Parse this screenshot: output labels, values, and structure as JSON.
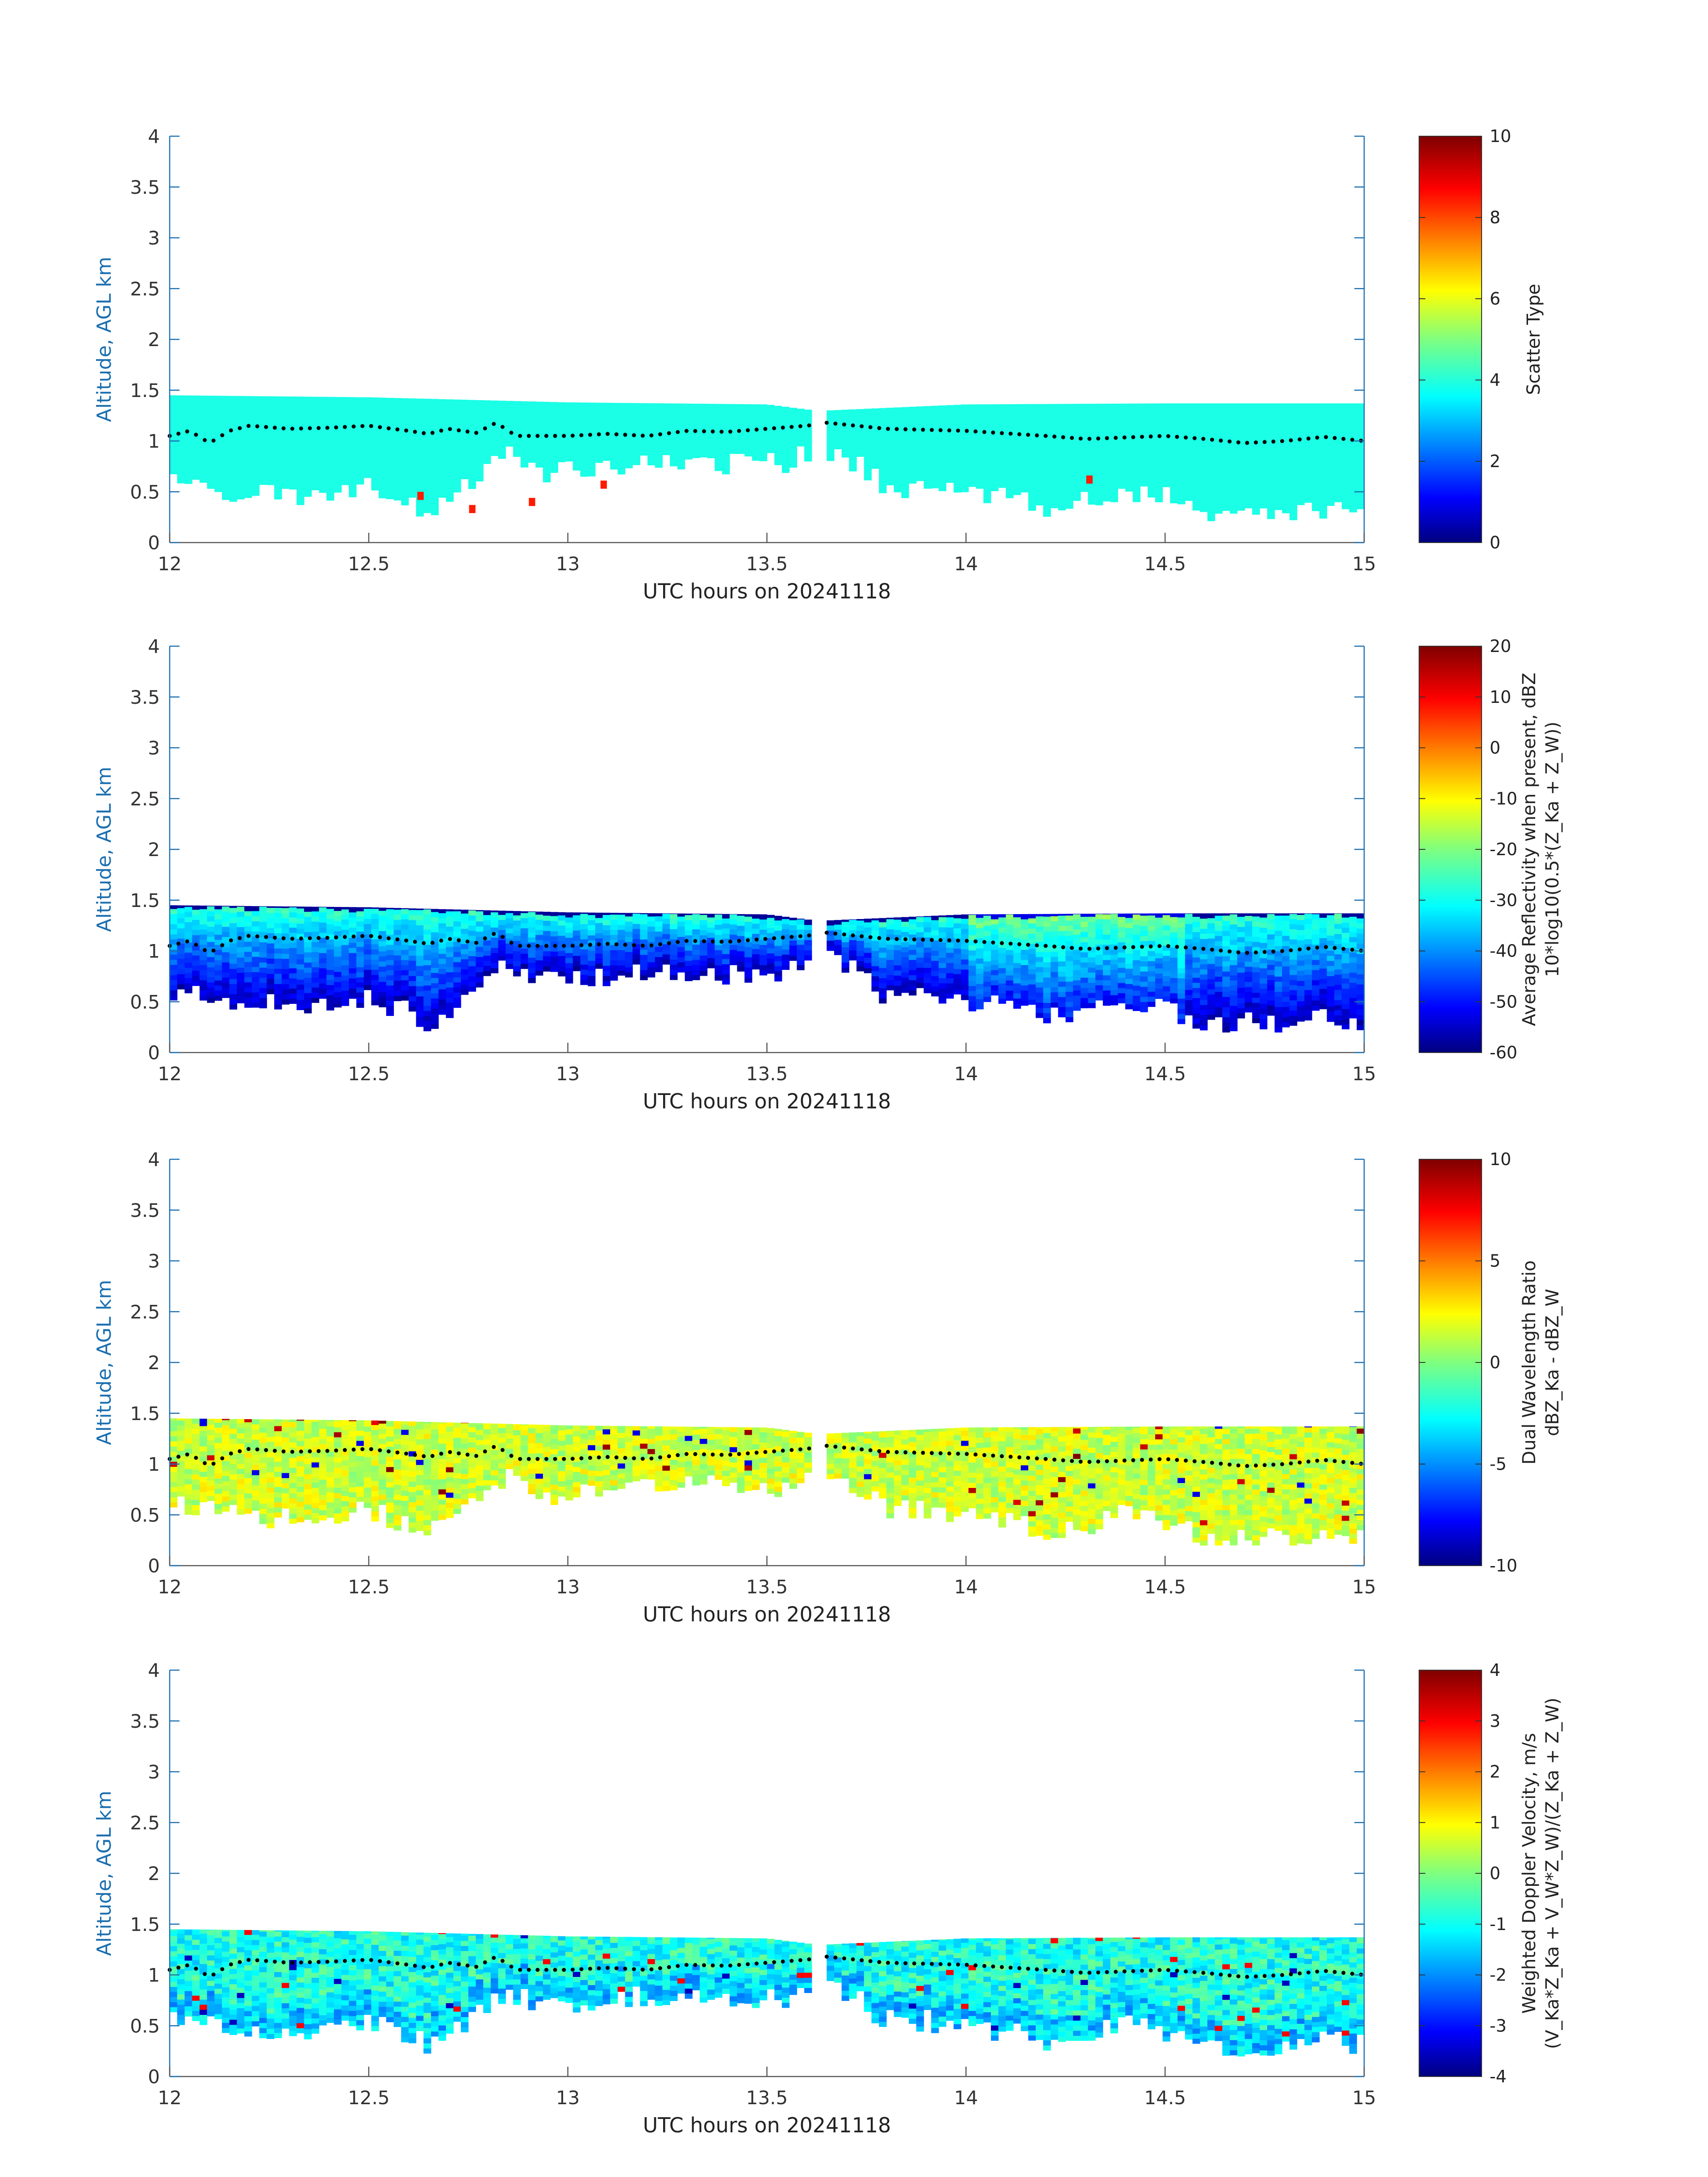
{
  "figure": {
    "x_range": [
      12,
      15
    ],
    "y_range": [
      0,
      4
    ],
    "x_ticks": [
      "12",
      "12.5",
      "13",
      "13.5",
      "14",
      "14.5",
      "15"
    ],
    "y_ticks": [
      "0",
      "0.5",
      "1",
      "1.5",
      "2",
      "2.5",
      "3",
      "3.5",
      "4"
    ],
    "colormap": "jet",
    "axis_color": "#1b6fb0"
  },
  "chart_data": [
    {
      "type": "heatmap",
      "xlabel": "UTC hours on 20241118",
      "ylabel": "Altitude, AGL km",
      "xlim": [
        12,
        15
      ],
      "ylim": [
        0,
        4
      ],
      "colorbar": {
        "label_lines": [
          "Scatter Type"
        ],
        "range": [
          0,
          10
        ],
        "ticks": [
          "10",
          "8",
          "6",
          "4",
          "2",
          "0"
        ]
      },
      "field": "scatter",
      "top_m": 1.35,
      "bottom_base_km": 0.65,
      "series": [
        {
          "values_description_ref": "layer"
        }
      ],
      "sparse_cells": [
        {
          "x": 12.63,
          "y": 0.46,
          "value": 8.5
        },
        {
          "x": 12.76,
          "y": 0.33,
          "value": 8.5
        },
        {
          "x": 12.91,
          "y": 0.4,
          "value": 8.5
        },
        {
          "x": 13.09,
          "y": 0.57,
          "value": 8.5
        },
        {
          "x": 14.31,
          "y": 0.62,
          "value": 8.5
        }
      ]
    },
    {
      "type": "heatmap",
      "xlabel": "UTC hours on 20241118",
      "ylabel": "Altitude, AGL km",
      "xlim": [
        12,
        15
      ],
      "ylim": [
        0,
        4
      ],
      "colorbar": {
        "label_lines": [
          "Average Reflectivity when present, dBZ",
          "10*log10(0.5*(Z_Ka + Z_W))"
        ],
        "range": [
          -60,
          20
        ],
        "ticks": [
          "20",
          "10",
          "0",
          "-10",
          "-20",
          "-30",
          "-40",
          "-50",
          "-60"
        ]
      },
      "field": "reflectivity"
    },
    {
      "type": "heatmap",
      "xlabel": "UTC hours on 20241118",
      "ylabel": "Altitude, AGL km",
      "xlim": [
        12,
        15
      ],
      "ylim": [
        0,
        4
      ],
      "colorbar": {
        "label_lines": [
          "Dual Wavelength Ratio",
          "dBZ_Ka - dBZ_W"
        ],
        "range": [
          -10,
          10
        ],
        "ticks": [
          "10",
          "5",
          "0",
          "-5",
          "-10"
        ]
      },
      "field": "dwr"
    },
    {
      "type": "heatmap",
      "xlabel": "UTC hours on 20241118",
      "ylabel": "Altitude, AGL km",
      "xlim": [
        12,
        15
      ],
      "ylim": [
        0,
        4
      ],
      "colorbar": {
        "label_lines": [
          "Weighted Doppler Velocity, m/s",
          "(V_Ka*Z_Ka + V_W*Z_W)/(Z_Ka + Z_W)"
        ],
        "range": [
          -4,
          4
        ],
        "ticks": [
          "4",
          "3",
          "2",
          "1",
          "0",
          "-1",
          "-2",
          "-3",
          "-4"
        ]
      },
      "field": "velocity"
    }
  ],
  "cloud_layer": {
    "gap_hours": [
      13.62,
      13.65
    ],
    "top_km": [
      {
        "x": 12.0,
        "y": 1.45
      },
      {
        "x": 12.5,
        "y": 1.43
      },
      {
        "x": 13.0,
        "y": 1.38
      },
      {
        "x": 13.5,
        "y": 1.36
      },
      {
        "x": 13.62,
        "y": 1.3
      },
      {
        "x": 13.65,
        "y": 1.3
      },
      {
        "x": 14.0,
        "y": 1.36
      },
      {
        "x": 14.5,
        "y": 1.37
      },
      {
        "x": 15.0,
        "y": 1.37
      }
    ],
    "base_km": [
      {
        "x": 12.0,
        "y": 0.6
      },
      {
        "x": 12.1,
        "y": 0.55
      },
      {
        "x": 12.2,
        "y": 0.45
      },
      {
        "x": 12.3,
        "y": 0.5
      },
      {
        "x": 12.4,
        "y": 0.42
      },
      {
        "x": 12.5,
        "y": 0.55
      },
      {
        "x": 12.6,
        "y": 0.4
      },
      {
        "x": 12.65,
        "y": 0.3
      },
      {
        "x": 12.75,
        "y": 0.55
      },
      {
        "x": 12.85,
        "y": 0.85
      },
      {
        "x": 12.95,
        "y": 0.7
      },
      {
        "x": 13.05,
        "y": 0.72
      },
      {
        "x": 13.2,
        "y": 0.8
      },
      {
        "x": 13.4,
        "y": 0.78
      },
      {
        "x": 13.55,
        "y": 0.78
      },
      {
        "x": 13.62,
        "y": 0.95
      },
      {
        "x": 13.7,
        "y": 0.85
      },
      {
        "x": 13.8,
        "y": 0.55
      },
      {
        "x": 13.9,
        "y": 0.55
      },
      {
        "x": 14.0,
        "y": 0.5
      },
      {
        "x": 14.1,
        "y": 0.45
      },
      {
        "x": 14.2,
        "y": 0.35
      },
      {
        "x": 14.3,
        "y": 0.4
      },
      {
        "x": 14.4,
        "y": 0.5
      },
      {
        "x": 14.5,
        "y": 0.45
      },
      {
        "x": 14.6,
        "y": 0.25
      },
      {
        "x": 14.7,
        "y": 0.3
      },
      {
        "x": 14.8,
        "y": 0.25
      },
      {
        "x": 14.9,
        "y": 0.35
      },
      {
        "x": 15.0,
        "y": 0.3
      }
    ],
    "dotted_line_km": [
      {
        "x": 12.0,
        "y": 1.05
      },
      {
        "x": 12.05,
        "y": 1.1
      },
      {
        "x": 12.1,
        "y": 0.98
      },
      {
        "x": 12.15,
        "y": 1.1
      },
      {
        "x": 12.2,
        "y": 1.15
      },
      {
        "x": 12.3,
        "y": 1.12
      },
      {
        "x": 12.4,
        "y": 1.13
      },
      {
        "x": 12.5,
        "y": 1.15
      },
      {
        "x": 12.6,
        "y": 1.1
      },
      {
        "x": 12.65,
        "y": 1.07
      },
      {
        "x": 12.7,
        "y": 1.12
      },
      {
        "x": 12.77,
        "y": 1.08
      },
      {
        "x": 12.82,
        "y": 1.18
      },
      {
        "x": 12.87,
        "y": 1.05
      },
      {
        "x": 13.0,
        "y": 1.05
      },
      {
        "x": 13.1,
        "y": 1.07
      },
      {
        "x": 13.2,
        "y": 1.05
      },
      {
        "x": 13.3,
        "y": 1.1
      },
      {
        "x": 13.4,
        "y": 1.09
      },
      {
        "x": 13.5,
        "y": 1.12
      },
      {
        "x": 13.6,
        "y": 1.15
      },
      {
        "x": 13.65,
        "y": 1.18
      },
      {
        "x": 13.8,
        "y": 1.12
      },
      {
        "x": 14.0,
        "y": 1.1
      },
      {
        "x": 14.2,
        "y": 1.05
      },
      {
        "x": 14.3,
        "y": 1.02
      },
      {
        "x": 14.5,
        "y": 1.05
      },
      {
        "x": 14.6,
        "y": 1.02
      },
      {
        "x": 14.7,
        "y": 0.98
      },
      {
        "x": 14.8,
        "y": 1.0
      },
      {
        "x": 14.9,
        "y": 1.04
      },
      {
        "x": 15.0,
        "y": 1.0
      }
    ]
  }
}
